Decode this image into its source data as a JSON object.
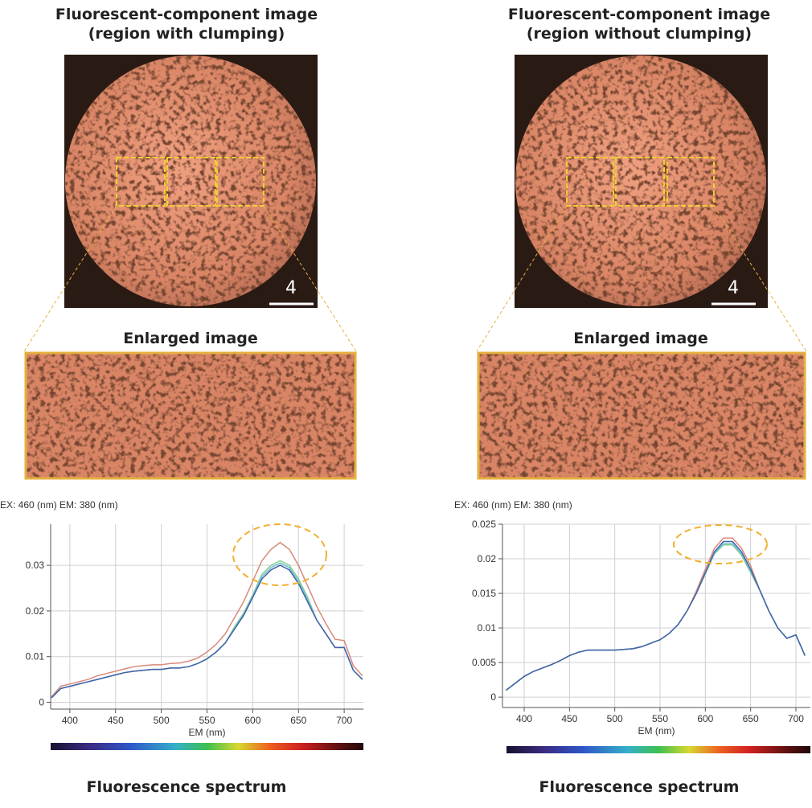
{
  "panels": [
    {
      "title_lines": [
        "Fluorescent-component image",
        "(region with clumping)"
      ],
      "scale_label": "4",
      "enlarged_label": "Enlarged image",
      "caption": "Fluorescence spectrum"
    },
    {
      "title_lines": [
        "Fluorescent-component image",
        "(region without clumping)"
      ],
      "scale_label": "4",
      "enlarged_label": "Enlarged image",
      "caption": "Fluorescence spectrum"
    }
  ],
  "chart_data": [
    {
      "type": "line",
      "title": "EX: 460 (nm) EM: 380 (nm)",
      "x_label": "EM (nm)",
      "x": [
        380,
        390,
        400,
        410,
        420,
        430,
        440,
        450,
        460,
        470,
        480,
        490,
        500,
        510,
        520,
        530,
        540,
        550,
        560,
        570,
        580,
        590,
        600,
        610,
        620,
        630,
        640,
        650,
        660,
        670,
        680,
        690,
        700,
        710,
        720
      ],
      "series": [
        {
          "color": "#d98a7c",
          "values": [
            0.0012,
            0.0035,
            0.004,
            0.0045,
            0.005,
            0.0058,
            0.0063,
            0.0068,
            0.0073,
            0.0078,
            0.008,
            0.0082,
            0.0082,
            0.0085,
            0.0086,
            0.009,
            0.0097,
            0.011,
            0.0127,
            0.015,
            0.0185,
            0.022,
            0.0265,
            0.031,
            0.0335,
            0.035,
            0.0335,
            0.03,
            0.0255,
            0.021,
            0.0172,
            0.0138,
            0.0135,
            0.008,
            0.0058
          ]
        },
        {
          "color": "#86cc92",
          "values": [
            0.001,
            0.003,
            0.0035,
            0.004,
            0.0045,
            0.005,
            0.0055,
            0.006,
            0.0065,
            0.0068,
            0.007,
            0.0072,
            0.0072,
            0.0075,
            0.0075,
            0.0078,
            0.0085,
            0.0095,
            0.011,
            0.013,
            0.0165,
            0.0195,
            0.0235,
            0.028,
            0.03,
            0.031,
            0.03,
            0.027,
            0.023,
            0.018,
            0.015,
            0.012,
            0.012,
            0.007,
            0.005
          ]
        },
        {
          "color": "#6cc3d6",
          "values": [
            0.001,
            0.003,
            0.0035,
            0.004,
            0.0045,
            0.005,
            0.0055,
            0.006,
            0.0065,
            0.0068,
            0.007,
            0.0072,
            0.0072,
            0.0075,
            0.0075,
            0.0078,
            0.0085,
            0.0095,
            0.011,
            0.013,
            0.0162,
            0.0192,
            0.0232,
            0.0275,
            0.0295,
            0.0305,
            0.0295,
            0.0265,
            0.0225,
            0.018,
            0.015,
            0.012,
            0.012,
            0.007,
            0.005
          ]
        },
        {
          "color": "#4461a8",
          "values": [
            0.001,
            0.003,
            0.0035,
            0.004,
            0.0045,
            0.005,
            0.0055,
            0.006,
            0.0065,
            0.0068,
            0.007,
            0.0072,
            0.0072,
            0.0075,
            0.0075,
            0.0078,
            0.0085,
            0.0095,
            0.011,
            0.013,
            0.016,
            0.019,
            0.023,
            0.027,
            0.029,
            0.03,
            0.029,
            0.026,
            0.022,
            0.018,
            0.015,
            0.012,
            0.012,
            0.007,
            0.005
          ]
        }
      ],
      "xlim": [
        379,
        721
      ],
      "xticks": [
        400,
        450,
        500,
        550,
        600,
        650,
        700
      ],
      "ylim": [
        -0.0015,
        0.039
      ],
      "yticks": [
        0,
        0.01,
        0.02,
        0.03
      ],
      "grid": true
    },
    {
      "type": "line",
      "title": "EX: 460 (nm) EM: 380 (nm)",
      "x_label": "EM (nm)",
      "x": [
        380,
        390,
        400,
        410,
        420,
        430,
        440,
        450,
        460,
        470,
        480,
        490,
        500,
        510,
        520,
        530,
        540,
        550,
        560,
        570,
        580,
        590,
        600,
        610,
        620,
        630,
        640,
        650,
        660,
        670,
        680,
        690,
        700,
        710
      ],
      "series": [
        {
          "color": "#d98a7c",
          "values": [
            0.001,
            0.002,
            0.003,
            0.0037,
            0.0042,
            0.0047,
            0.0053,
            0.006,
            0.0065,
            0.0068,
            0.0068,
            0.0068,
            0.0068,
            0.0069,
            0.007,
            0.0073,
            0.0078,
            0.0083,
            0.0092,
            0.0105,
            0.0125,
            0.0153,
            0.0185,
            0.0215,
            0.023,
            0.023,
            0.0215,
            0.019,
            0.0155,
            0.0125,
            0.01,
            0.0085,
            0.009,
            0.006
          ]
        },
        {
          "color": "#86cc92",
          "values": [
            0.001,
            0.002,
            0.003,
            0.0037,
            0.0042,
            0.0047,
            0.0053,
            0.006,
            0.0065,
            0.0068,
            0.0068,
            0.0068,
            0.0068,
            0.0069,
            0.007,
            0.0073,
            0.0078,
            0.0083,
            0.0092,
            0.0105,
            0.0125,
            0.015,
            0.0178,
            0.0207,
            0.022,
            0.022,
            0.0205,
            0.018,
            0.0155,
            0.0125,
            0.01,
            0.0085,
            0.009,
            0.006
          ]
        },
        {
          "color": "#6cc3d6",
          "values": [
            0.001,
            0.002,
            0.003,
            0.0037,
            0.0042,
            0.0047,
            0.0053,
            0.006,
            0.0065,
            0.0068,
            0.0068,
            0.0068,
            0.0068,
            0.0069,
            0.007,
            0.0073,
            0.0078,
            0.0083,
            0.0092,
            0.0105,
            0.0125,
            0.015,
            0.0179,
            0.0208,
            0.0222,
            0.0222,
            0.0207,
            0.0182,
            0.0155,
            0.0125,
            0.01,
            0.0085,
            0.009,
            0.006
          ]
        },
        {
          "color": "#4461a8",
          "values": [
            0.001,
            0.002,
            0.003,
            0.0037,
            0.0042,
            0.0047,
            0.0053,
            0.006,
            0.0065,
            0.0068,
            0.0068,
            0.0068,
            0.0068,
            0.0069,
            0.007,
            0.0073,
            0.0078,
            0.0083,
            0.0092,
            0.0105,
            0.0125,
            0.015,
            0.018,
            0.021,
            0.0225,
            0.0225,
            0.021,
            0.0185,
            0.0155,
            0.0125,
            0.01,
            0.0085,
            0.009,
            0.006
          ]
        }
      ],
      "xlim": [
        376,
        716
      ],
      "xticks": [
        400,
        450,
        500,
        550,
        600,
        650,
        700
      ],
      "ylim": [
        -0.0015,
        0.025
      ],
      "yticks": [
        0,
        0.005,
        0.01,
        0.015,
        0.02,
        0.025
      ],
      "grid": true
    }
  ]
}
